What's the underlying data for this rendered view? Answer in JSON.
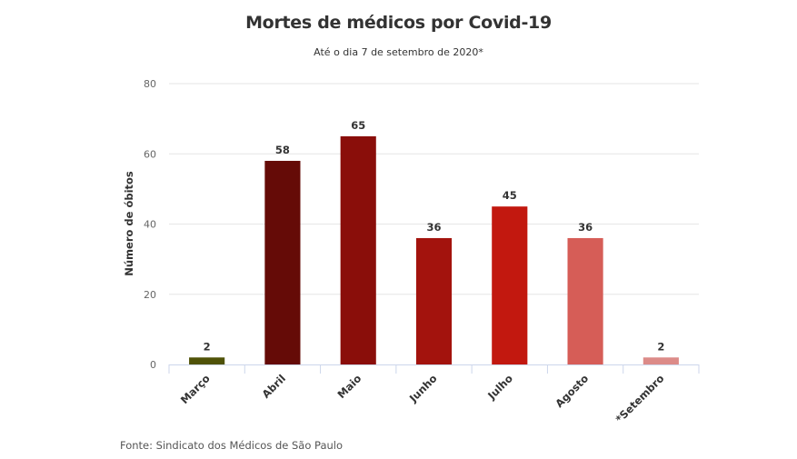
{
  "chart_data": {
    "type": "bar",
    "title": "Mortes de médicos por Covid-19",
    "subtitle": "Até o dia 7 de setembro de 2020*",
    "xlabel": "",
    "ylabel": "Número de óbitos",
    "ylim": [
      0,
      80
    ],
    "yticks": [
      0,
      20,
      40,
      60,
      80
    ],
    "ytick_labels": [
      "0",
      "20",
      "40",
      "60",
      "80"
    ],
    "grid": true,
    "categories": [
      "Março",
      "Abril",
      "Maio",
      "Junho",
      "Julho",
      "Agosto",
      "*Setembro"
    ],
    "values": [
      2,
      58,
      65,
      36,
      45,
      36,
      2
    ],
    "data_labels": [
      "2",
      "58",
      "65",
      "36",
      "45",
      "36",
      "2"
    ],
    "colors": [
      "#4f5208",
      "#650b07",
      "#8a0e0a",
      "#a3130d",
      "#c2180f",
      "#d65d57",
      "#dc8b88"
    ],
    "source": "Fonte: Sindicato dos Médicos de São Paulo"
  }
}
